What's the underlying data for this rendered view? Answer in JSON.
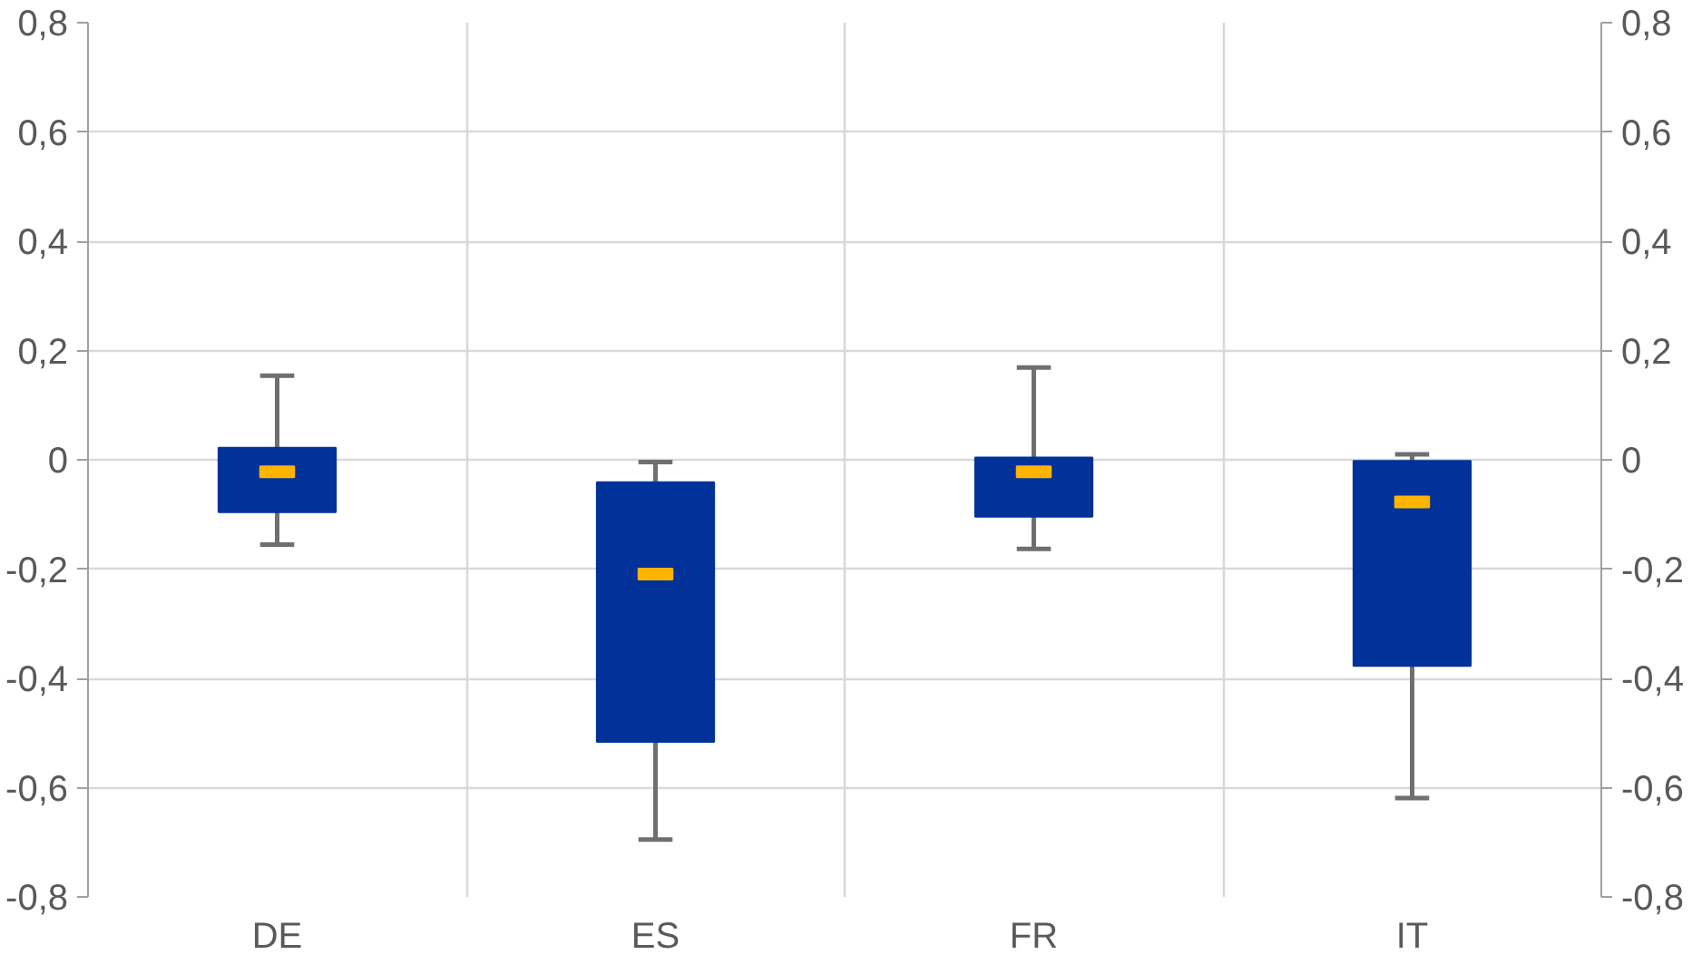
{
  "chart_data": {
    "type": "box",
    "categories": [
      "DE",
      "ES",
      "FR",
      "IT"
    ],
    "series": [
      {
        "color": "#003299",
        "boxes": [
          {
            "low": -0.155,
            "q1": -0.096,
            "median": -0.022,
            "q3": 0.022,
            "high": 0.154
          },
          {
            "low": -0.695,
            "q1": -0.516,
            "median": -0.209,
            "q3": -0.041,
            "high": -0.004
          },
          {
            "low": -0.163,
            "q1": -0.104,
            "median": -0.022,
            "q3": 0.004,
            "high": 0.169
          },
          {
            "low": -0.619,
            "q1": -0.377,
            "median": -0.077,
            "q3": -0.002,
            "high": 0.01
          }
        ]
      }
    ],
    "ylim": [
      -0.8,
      0.8
    ],
    "yticks": [
      {
        "value": -0.8,
        "label": "-0,8"
      },
      {
        "value": -0.6,
        "label": "-0,6"
      },
      {
        "value": -0.4,
        "label": "-0,4"
      },
      {
        "value": -0.2,
        "label": "-0,2"
      },
      0,
      {
        "value": 0.2,
        "label": "0,2"
      },
      {
        "value": 0.4,
        "label": "0,4"
      },
      {
        "value": 0.6,
        "label": "0,6"
      },
      {
        "value": 0.8,
        "label": "0,8"
      }
    ],
    "y2lim": [
      -0.8,
      0.8
    ],
    "y2ticks": [
      {
        "value": -0.8,
        "label": "-0,8"
      },
      {
        "value": -0.6,
        "label": "-0,6"
      },
      {
        "value": -0.4,
        "label": "-0,4"
      },
      {
        "value": -0.2,
        "label": "-0,2"
      },
      0,
      {
        "value": 0.2,
        "label": "0,2"
      },
      {
        "value": 0.4,
        "label": "0,4"
      },
      {
        "value": 0.6,
        "label": "0,6"
      },
      {
        "value": 0.8,
        "label": "0,8"
      }
    ],
    "grid": true
  }
}
